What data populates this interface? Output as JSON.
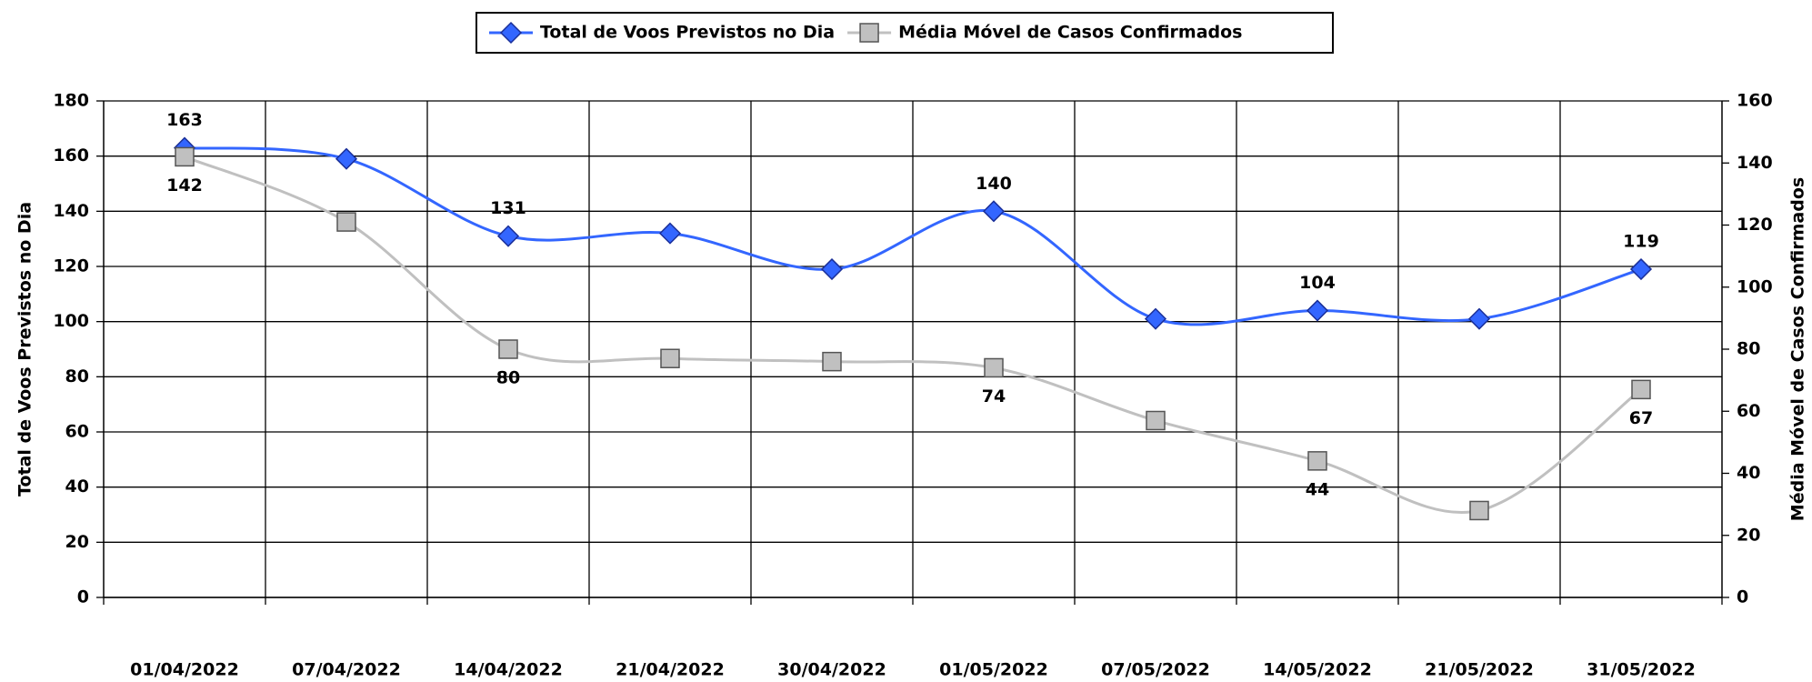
{
  "chart_data": {
    "type": "line",
    "categories": [
      "01/04/2022",
      "07/04/2022",
      "14/04/2022",
      "21/04/2022",
      "30/04/2022",
      "01/05/2022",
      "07/05/2022",
      "14/05/2022",
      "21/05/2022",
      "31/05/2022"
    ],
    "ylabel": "Total de Voos Previstos no Dia",
    "y2label": "Média Móvel de Casos Confirmados",
    "ylim": [
      0,
      180
    ],
    "yticks": [
      0,
      20,
      40,
      60,
      80,
      100,
      120,
      140,
      160,
      180
    ],
    "y2lim": [
      0,
      160
    ],
    "y2ticks": [
      0,
      20,
      40,
      60,
      80,
      100,
      120,
      140,
      160
    ],
    "grid": true,
    "legend": "top",
    "series": [
      {
        "name": "Total de Voos Previstos no Dia",
        "color": "#3366ff",
        "marker": "diamond",
        "values": [
          163,
          159,
          131,
          132,
          119,
          140,
          101,
          104,
          101,
          119
        ],
        "value_labels": [
          "163",
          null,
          "131",
          null,
          null,
          "140",
          null,
          "104",
          null,
          "119"
        ]
      },
      {
        "name": "Média Móvel de Casos Confirmados",
        "color": "#c0c0c0",
        "marker": "square",
        "axis": "y2",
        "values": [
          142,
          121,
          80,
          77,
          76,
          74,
          57,
          44,
          28,
          67
        ],
        "value_labels": [
          "142",
          null,
          "80",
          null,
          null,
          "74",
          null,
          "44",
          null,
          "67"
        ]
      }
    ]
  }
}
